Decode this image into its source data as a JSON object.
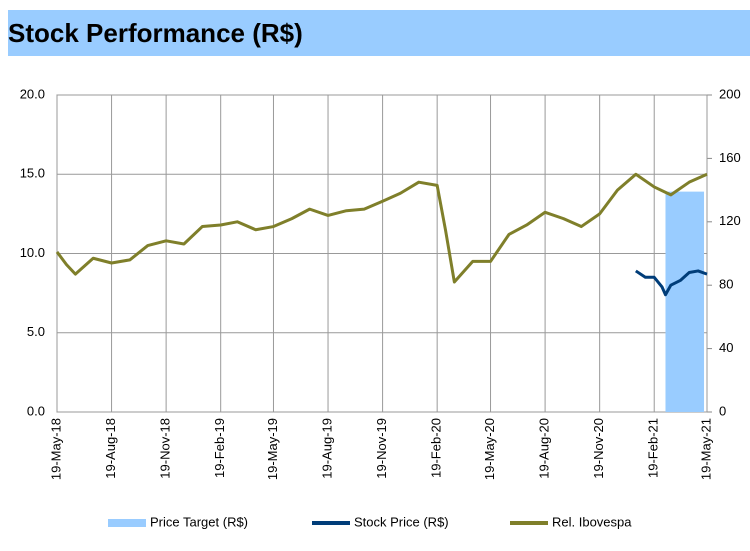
{
  "chart_data": {
    "type": "line",
    "title": "Stock Performance (R$)",
    "xlim": [
      "19-May-18",
      "19-May-21"
    ],
    "xticks": [
      "19-May-18",
      "19-Aug-18",
      "19-Nov-18",
      "19-Feb-19",
      "19-May-19",
      "19-Aug-19",
      "19-Nov-19",
      "19-Feb-20",
      "19-May-20",
      "19-Aug-20",
      "19-Nov-20",
      "19-Feb-21",
      "19-May-21"
    ],
    "ylim": [
      0,
      20
    ],
    "yticks": [
      {
        "value": 0,
        "label": "0.0"
      },
      {
        "value": 5,
        "label": "5.0"
      },
      {
        "value": 10,
        "label": "10.0"
      },
      {
        "value": 15,
        "label": "15.0"
      },
      {
        "value": 20,
        "label": "20.0"
      }
    ],
    "y2lim": [
      0,
      200
    ],
    "y2ticks": [
      0,
      40,
      80,
      120,
      160,
      200
    ],
    "grid": true,
    "series": [
      {
        "name": "Price Target (R$)",
        "color": "#99ccff",
        "kind": "area",
        "x": [
          "10-Mar-21",
          "14-May-21"
        ],
        "values": [
          13.9,
          13.9
        ]
      },
      {
        "name": "Stock Price (R$)",
        "color": "#003d79",
        "kind": "line",
        "x": [
          "19-Jan-21",
          "4-Feb-21",
          "19-Feb-21",
          "4-Mar-21",
          "10-Mar-21",
          "19-Mar-21",
          "4-Apr-21",
          "19-Apr-21",
          "4-May-21",
          "19-May-21"
        ],
        "values": [
          8.9,
          8.5,
          8.5,
          7.9,
          7.4,
          8.0,
          8.3,
          8.8,
          8.9,
          8.7
        ]
      },
      {
        "name": "Rel. Ibovespa",
        "color": "#7f7f2a",
        "kind": "line",
        "axis": "y2",
        "x": [
          "19-May-18",
          "4-Jun-18",
          "19-Jun-18",
          "19-Jul-18",
          "19-Aug-18",
          "19-Sep-18",
          "19-Oct-18",
          "19-Nov-18",
          "19-Dec-18",
          "19-Jan-19",
          "19-Feb-19",
          "19-Mar-19",
          "19-Apr-19",
          "19-May-19",
          "19-Jun-19",
          "19-Jul-19",
          "19-Aug-19",
          "19-Sep-19",
          "19-Oct-19",
          "19-Nov-19",
          "19-Dec-19",
          "19-Jan-20",
          "19-Feb-20",
          "4-Mar-20",
          "19-Mar-20",
          "19-Apr-20",
          "19-May-20",
          "19-Jun-20",
          "19-Jul-20",
          "19-Aug-20",
          "19-Sep-20",
          "19-Oct-20",
          "19-Nov-20",
          "19-Dec-20",
          "19-Jan-21",
          "19-Feb-21",
          "19-Mar-21",
          "19-Apr-21",
          "19-May-21"
        ],
        "values": [
          101,
          93,
          87,
          97,
          94,
          96,
          105,
          108,
          106,
          117,
          118,
          120,
          115,
          117,
          122,
          128,
          124,
          127,
          128,
          133,
          138,
          145,
          143,
          115,
          82,
          95,
          95,
          112,
          118,
          126,
          122,
          117,
          125,
          140,
          150,
          142,
          137,
          145,
          150
        ]
      }
    ]
  }
}
